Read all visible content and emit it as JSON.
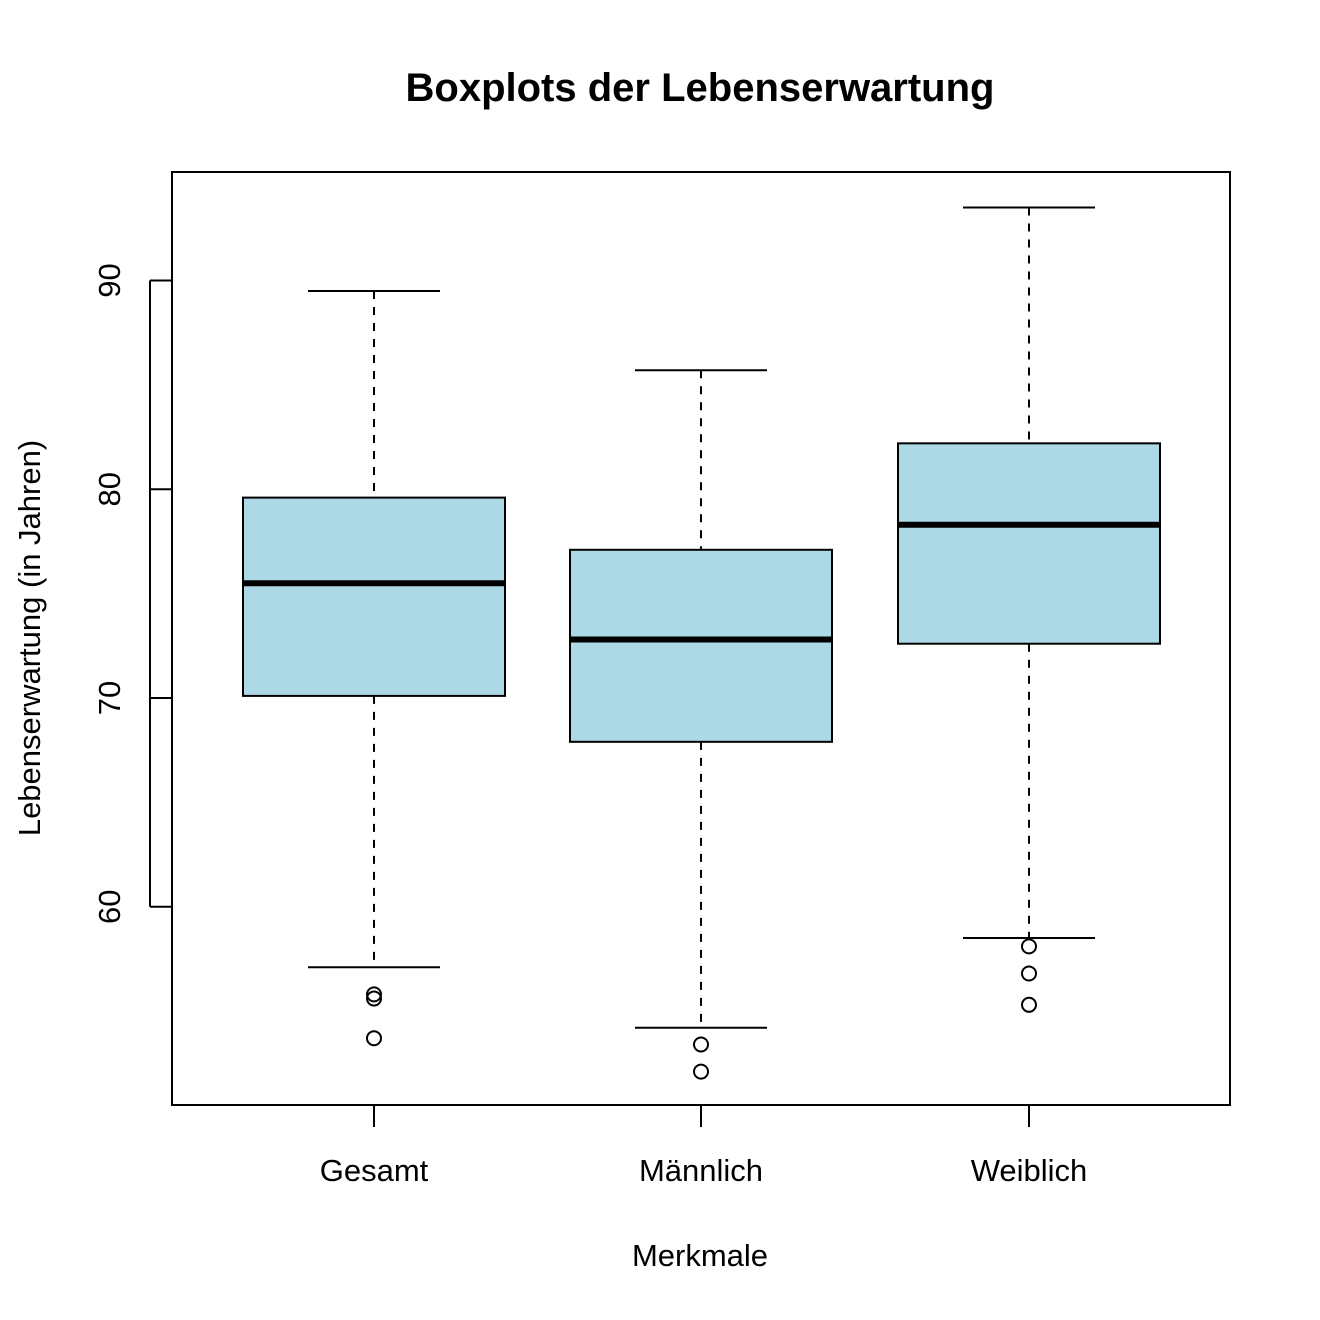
{
  "chart_data": {
    "type": "boxplot",
    "title": "Boxplots der Lebenserwartung",
    "xlabel": "Merkmale",
    "ylabel": "Lebenserwartung (in Jahren)",
    "ylim": [
      50.5,
      95.2
    ],
    "y_ticks": [
      60,
      70,
      80,
      90
    ],
    "y_tick_labels": [
      "60",
      "70",
      "80",
      "90"
    ],
    "categories": [
      "Gesamt",
      "Männlich",
      "Weiblich"
    ],
    "box_fill": "#add8e6",
    "grid": false,
    "boxes": [
      {
        "name": "Gesamt",
        "whisker_low": 57.1,
        "q1": 70.1,
        "median": 75.5,
        "q3": 79.6,
        "whisker_high": 89.5,
        "outliers": [
          55.8,
          55.6,
          53.7
        ]
      },
      {
        "name": "Männlich",
        "whisker_low": 54.2,
        "q1": 67.9,
        "median": 72.8,
        "q3": 77.1,
        "whisker_high": 85.7,
        "outliers": [
          53.4,
          52.1
        ]
      },
      {
        "name": "Weiblich",
        "whisker_low": 58.5,
        "q1": 72.6,
        "median": 78.3,
        "q3": 82.2,
        "whisker_high": 93.5,
        "outliers": [
          58.1,
          56.8,
          55.3
        ]
      }
    ]
  }
}
